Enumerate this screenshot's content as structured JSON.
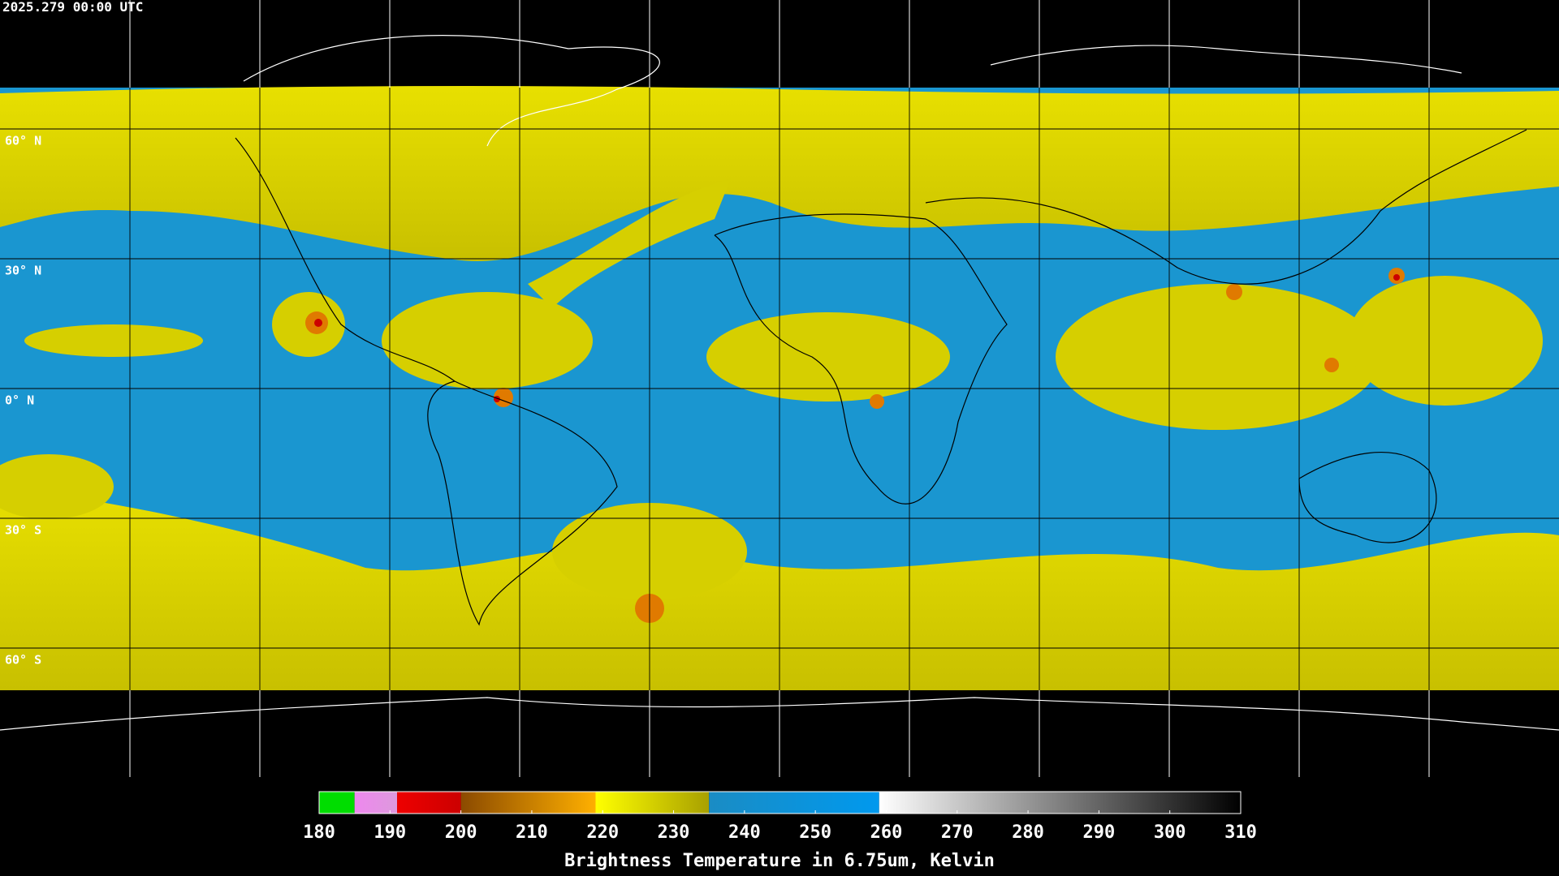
{
  "header": {
    "timestamp": "2025.279 00:00 UTC"
  },
  "map": {
    "lat_labels": [
      "60° N",
      "30° N",
      "0° N",
      "30° S",
      "60° S"
    ]
  },
  "colorbar": {
    "title": "Brightness Temperature in 6.75um, Kelvin",
    "lim": [
      180,
      310
    ],
    "ticks": [
      180,
      190,
      200,
      210,
      220,
      230,
      240,
      250,
      260,
      270,
      280,
      290,
      300,
      310
    ],
    "segments": [
      {
        "from": 180,
        "to": 185,
        "colors": [
          "#00dd00",
          "#00dd00"
        ]
      },
      {
        "from": 185,
        "to": 191,
        "colors": [
          "#ee88ee",
          "#dd99dd"
        ]
      },
      {
        "from": 191,
        "to": 200,
        "colors": [
          "#ee0000",
          "#cc0000"
        ]
      },
      {
        "from": 200,
        "to": 219,
        "colors": [
          "#8b4a00",
          "#ffb000"
        ]
      },
      {
        "from": 219,
        "to": 235,
        "colors": [
          "#ffff00",
          "#a8a000"
        ]
      },
      {
        "from": 235,
        "to": 259,
        "colors": [
          "#1a8cc4",
          "#0099ee"
        ]
      },
      {
        "from": 259,
        "to": 310,
        "colors": [
          "#ffffff",
          "#000000"
        ]
      }
    ]
  }
}
